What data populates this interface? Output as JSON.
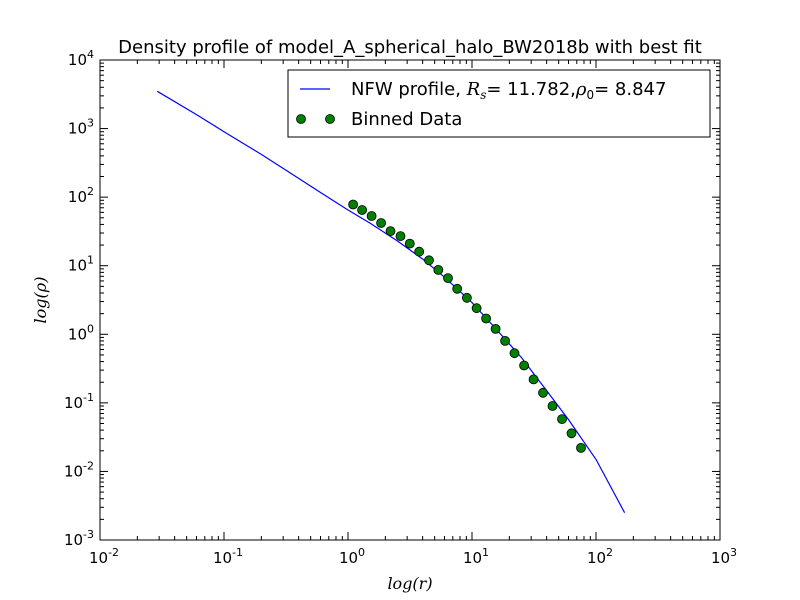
{
  "chart_data": {
    "type": "line",
    "title": "Density profile of model_A_spherical_halo_BW2018b with best fit",
    "xlabel": "log(r)",
    "ylabel": "log(ρ)",
    "x_scale": "log",
    "y_scale": "log",
    "xlim": [
      0.01,
      1000
    ],
    "ylim": [
      0.001,
      10000
    ],
    "grid": false,
    "legend_position": "top-right",
    "x_ticks": [
      {
        "value": 0.01,
        "base": "10",
        "exp": "-2"
      },
      {
        "value": 0.1,
        "base": "10",
        "exp": "-1"
      },
      {
        "value": 1,
        "base": "10",
        "exp": "0"
      },
      {
        "value": 10,
        "base": "10",
        "exp": "1"
      },
      {
        "value": 100,
        "base": "10",
        "exp": "2"
      },
      {
        "value": 1000,
        "base": "10",
        "exp": "3"
      }
    ],
    "y_ticks": [
      {
        "value": 0.001,
        "base": "10",
        "exp": "-3"
      },
      {
        "value": 0.01,
        "base": "10",
        "exp": "-2"
      },
      {
        "value": 0.1,
        "base": "10",
        "exp": "-1"
      },
      {
        "value": 1,
        "base": "10",
        "exp": "0"
      },
      {
        "value": 10,
        "base": "10",
        "exp": "1"
      },
      {
        "value": 100,
        "base": "10",
        "exp": "2"
      },
      {
        "value": 1000,
        "base": "10",
        "exp": "3"
      },
      {
        "value": 10000,
        "base": "10",
        "exp": "4"
      }
    ],
    "fit_parameters": {
      "Rs": 11.782,
      "rho0": 8.847
    },
    "series": [
      {
        "name": "NFW profile, Rs= 11.782,ρ0= 8.847",
        "legend_parts": {
          "prefix": "NFW profile, ",
          "sym1": "R",
          "sub1": "s",
          "mid": "= 11.782,",
          "sym2": "ρ",
          "sub2": "0",
          "suffix": "= 8.847"
        },
        "kind": "line",
        "color": "#0000ff",
        "x": [
          0.029,
          0.06,
          0.1,
          0.2,
          0.35,
          0.6,
          1.0,
          1.5,
          2.5,
          4,
          6,
          10,
          15,
          25,
          40,
          60,
          100,
          170
        ],
        "y": [
          3500,
          1600,
          900,
          420,
          220,
          117,
          65,
          42,
          23,
          12.5,
          6.8,
          2.9,
          1.3,
          0.46,
          0.15,
          0.057,
          0.015,
          0.0025
        ]
      },
      {
        "name": "Binned Data",
        "kind": "scatter",
        "color": "#008000",
        "x": [
          1.1,
          1.3,
          1.55,
          1.85,
          2.2,
          2.65,
          3.15,
          3.75,
          4.5,
          5.35,
          6.4,
          7.6,
          9.1,
          10.9,
          13.0,
          15.5,
          18.5,
          22.0,
          26.3,
          31.4,
          37.4,
          44.6,
          53.2,
          63.5,
          75.7
        ],
        "y": [
          78,
          65,
          53,
          42,
          32,
          27,
          21,
          16,
          12,
          8.7,
          6.6,
          4.6,
          3.4,
          2.4,
          1.7,
          1.2,
          0.8,
          0.53,
          0.35,
          0.22,
          0.14,
          0.09,
          0.058,
          0.036,
          0.022
        ]
      }
    ]
  }
}
